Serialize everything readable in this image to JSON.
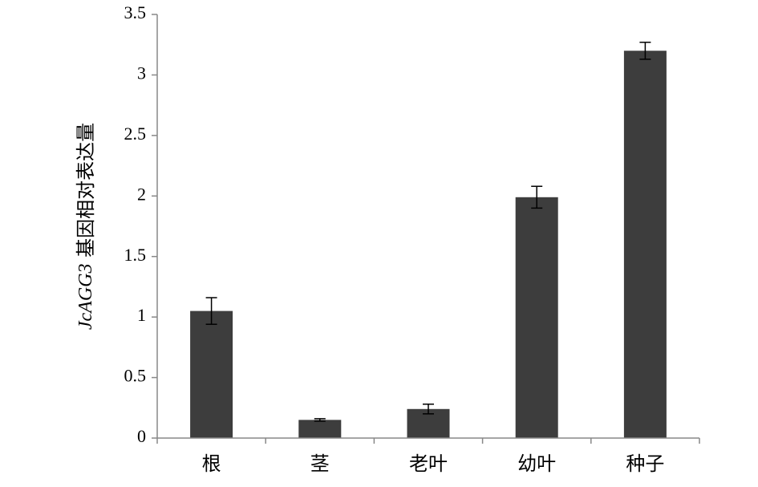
{
  "chart_data": {
    "type": "bar",
    "categories": [
      "根",
      "茎",
      "老叶",
      "幼叶",
      "种子"
    ],
    "values": [
      1.05,
      0.15,
      0.24,
      1.99,
      3.2
    ],
    "errors": [
      0.11,
      0.01,
      0.04,
      0.09,
      0.07
    ],
    "ylim": [
      0,
      3.5
    ],
    "yticks": [
      "0",
      "0.5",
      "1",
      "1.5",
      "2",
      "2.5",
      "3",
      "3.5"
    ],
    "ylabel": {
      "italic": "JcAGG3",
      "rest": " 基因相对表达量"
    },
    "bar_color": "#3d3d3d",
    "grid": false
  }
}
